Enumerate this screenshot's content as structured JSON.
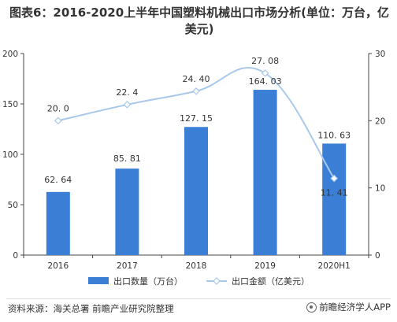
{
  "title": "图表6：2016-2020上半年中国塑料机械出口市场分析(单位：万台，亿美元)",
  "footer": {
    "source": "资料来源：海关总署 前瞻产业研究院整理",
    "brand": "前瞻经济学人APP"
  },
  "colors": {
    "bar": "#3a7fd5",
    "line": "#a9c9ec",
    "axis": "#444444"
  },
  "chart_data": {
    "type": "bar",
    "categories": [
      "2016",
      "2017",
      "2018",
      "2019",
      "2020H1"
    ],
    "series": [
      {
        "name": "出口数量（万台）",
        "type": "bar",
        "axis": "left",
        "values": [
          62.64,
          85.81,
          127.15,
          164.03,
          110.63
        ],
        "labels": [
          "62. 64",
          "85. 81",
          "127. 15",
          "164. 03",
          "110. 63"
        ]
      },
      {
        "name": "出口金额（亿美元）",
        "type": "line",
        "axis": "right",
        "values": [
          20.0,
          22.4,
          24.4,
          27.08,
          11.41
        ],
        "labels": [
          "20. 0",
          "22. 4",
          "24. 40",
          "27. 08",
          "11. 41"
        ]
      }
    ],
    "y_left": {
      "min": 0,
      "max": 200,
      "ticks": [
        "0",
        "50",
        "100",
        "150",
        "200"
      ]
    },
    "y_right": {
      "min": 0,
      "max": 30,
      "ticks": [
        "0",
        "10",
        "20",
        "30"
      ]
    },
    "legend_position": "bottom"
  }
}
